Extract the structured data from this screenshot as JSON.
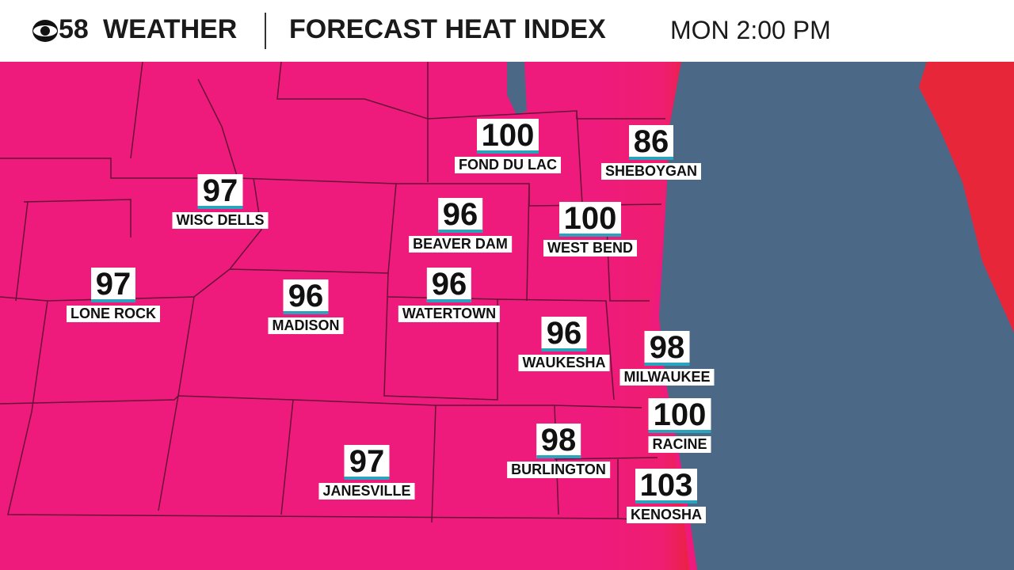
{
  "header": {
    "brand": "58",
    "channel": "WEATHER",
    "title": "FORECAST HEAT INDEX",
    "time": "MON 2:00 PM"
  },
  "cities": [
    {
      "value": "100",
      "name": "FOND DU LAC"
    },
    {
      "value": "86",
      "name": "SHEBOYGAN"
    },
    {
      "value": "97",
      "name": "WISC DELLS"
    },
    {
      "value": "96",
      "name": "BEAVER DAM"
    },
    {
      "value": "100",
      "name": "WEST BEND"
    },
    {
      "value": "97",
      "name": "LONE ROCK"
    },
    {
      "value": "96",
      "name": "MADISON"
    },
    {
      "value": "96",
      "name": "WATERTOWN"
    },
    {
      "value": "96",
      "name": "WAUKESHA"
    },
    {
      "value": "98",
      "name": "MILWAUKEE"
    },
    {
      "value": "100",
      "name": "RACINE"
    },
    {
      "value": "98",
      "name": "BURLINGTON"
    },
    {
      "value": "97",
      "name": "JANESVILLE"
    },
    {
      "value": "103",
      "name": "KENOSHA"
    }
  ]
}
